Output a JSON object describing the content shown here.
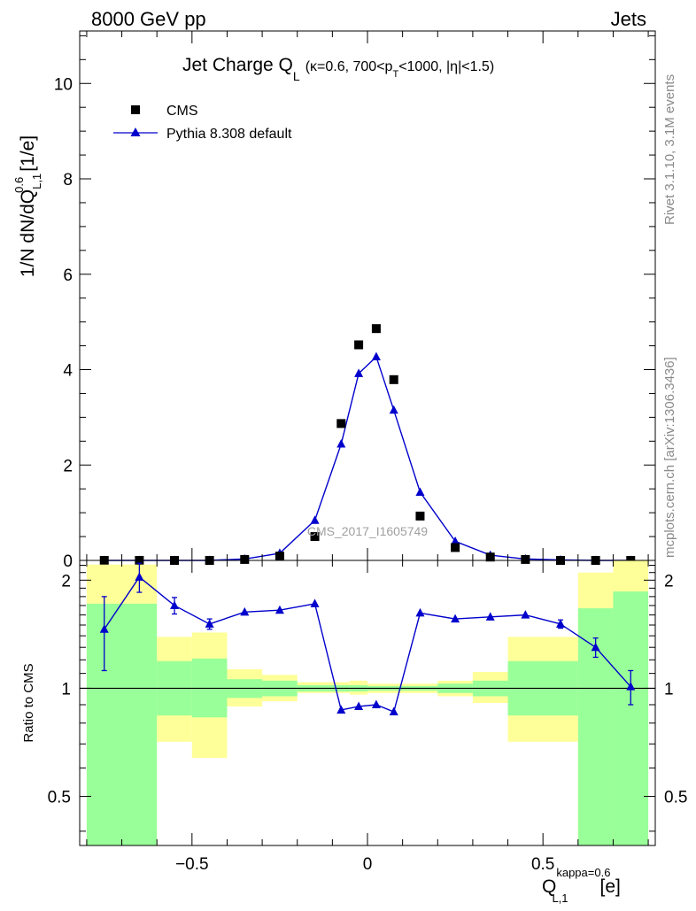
{
  "header": {
    "left": "8000 GeV pp",
    "right": "Jets"
  },
  "side_labels": {
    "rivet": "Rivet 3.1.10,  3.1M events",
    "mcplots": "mcplots.cern.ch [arXiv:1306.3436]"
  },
  "chart_data": [
    {
      "type": "scatter",
      "title": {
        "main": "Jet Charge Q",
        "main_sub": "L",
        "detail_pre": "(κ=0.6, 700<p",
        "detail_sub": "T",
        "detail_post": "<1000, |η|<1.5)"
      },
      "watermark": "CMS_2017_I1605749",
      "ylabel": "1/N dN/dQ",
      "ylabel_sup": "0.6",
      "ylabel_sub": "L,1",
      "ylabel_unit": "[1/e]",
      "xlim": [
        -0.82,
        0.82
      ],
      "ylim": [
        0,
        11.1
      ],
      "yticks": [
        0,
        2,
        4,
        6,
        8,
        10
      ],
      "legend": {
        "position": "top-left"
      },
      "series": [
        {
          "name": "CMS",
          "marker": "square",
          "color": "#000000",
          "x": [
            -0.75,
            -0.65,
            -0.55,
            -0.45,
            -0.35,
            -0.25,
            -0.15,
            -0.075,
            -0.025,
            0.025,
            0.075,
            0.15,
            0.25,
            0.35,
            0.45,
            0.55,
            0.65,
            0.75
          ],
          "y": [
            0.0,
            0.0,
            0.0,
            0.0,
            0.02,
            0.09,
            0.5,
            2.87,
            4.52,
            4.86,
            3.79,
            0.93,
            0.27,
            0.07,
            0.02,
            0.0,
            0.0,
            0.0
          ]
        },
        {
          "name": "Pythia 8.308 default",
          "marker": "triangle",
          "color": "#0000cc",
          "x": [
            -0.75,
            -0.65,
            -0.55,
            -0.45,
            -0.35,
            -0.25,
            -0.15,
            -0.075,
            -0.025,
            0.025,
            0.075,
            0.15,
            0.25,
            0.35,
            0.45,
            0.55,
            0.65,
            0.75
          ],
          "y": [
            0.0,
            0.0,
            0.0,
            0.0,
            0.03,
            0.15,
            0.84,
            2.44,
            3.92,
            4.27,
            3.15,
            1.43,
            0.4,
            0.11,
            0.03,
            0.01,
            0.0,
            0.0
          ]
        }
      ]
    },
    {
      "type": "line",
      "ylabel": "Ratio to CMS",
      "xlabel": "Q",
      "xlabel_sup": "kappa=0.6",
      "xlabel_sub": "L,1",
      "xlabel_unit": "[e]",
      "xlim": [
        -0.82,
        0.82
      ],
      "ylim": [
        0.365,
        2.27
      ],
      "yticks": [
        0.5,
        1,
        2
      ],
      "ytick_labels": [
        "0.5",
        "1",
        "2"
      ],
      "xticks": [
        -0.5,
        0,
        0.5
      ],
      "xtick_labels": [
        "−0.5",
        "0",
        "0.5"
      ],
      "bands": {
        "yellow_color": "#ffff99",
        "green_color": "#99ff99",
        "bins": [
          {
            "x0": -0.8,
            "x1": -0.6,
            "y_lo": 0.365,
            "y_hi": 2.21,
            "g_lo": 0.365,
            "g_hi": 1.72
          },
          {
            "x0": -0.6,
            "x1": -0.5,
            "y_lo": 0.71,
            "y_hi": 1.39,
            "g_lo": 0.84,
            "g_hi": 1.19
          },
          {
            "x0": -0.5,
            "x1": -0.4,
            "y_lo": 0.64,
            "y_hi": 1.43,
            "g_lo": 0.83,
            "g_hi": 1.21
          },
          {
            "x0": -0.4,
            "x1": -0.3,
            "y_lo": 0.89,
            "y_hi": 1.13,
            "g_lo": 0.94,
            "g_hi": 1.06
          },
          {
            "x0": -0.3,
            "x1": -0.2,
            "y_lo": 0.92,
            "y_hi": 1.09,
            "g_lo": 0.95,
            "g_hi": 1.05
          },
          {
            "x0": -0.2,
            "x1": -0.05,
            "y_lo": 0.97,
            "y_hi": 1.04,
            "g_lo": 0.98,
            "g_hi": 1.02
          },
          {
            "x0": -0.05,
            "x1": 0.0,
            "y_lo": 0.96,
            "y_hi": 1.05,
            "g_lo": 0.98,
            "g_hi": 1.02
          },
          {
            "x0": 0.0,
            "x1": 0.2,
            "y_lo": 0.97,
            "y_hi": 1.03,
            "g_lo": 0.985,
            "g_hi": 1.015
          },
          {
            "x0": 0.2,
            "x1": 0.3,
            "y_lo": 0.95,
            "y_hi": 1.05,
            "g_lo": 0.97,
            "g_hi": 1.03
          },
          {
            "x0": 0.3,
            "x1": 0.4,
            "y_lo": 0.91,
            "y_hi": 1.11,
            "g_lo": 0.95,
            "g_hi": 1.05
          },
          {
            "x0": 0.4,
            "x1": 0.6,
            "y_lo": 0.71,
            "y_hi": 1.39,
            "g_lo": 0.84,
            "g_hi": 1.19
          },
          {
            "x0": 0.6,
            "x1": 0.7,
            "y_lo": 0.365,
            "y_hi": 2.1,
            "g_lo": 0.365,
            "g_hi": 1.67
          },
          {
            "x0": 0.7,
            "x1": 0.8,
            "y_lo": 0.365,
            "y_hi": 2.27,
            "g_lo": 0.365,
            "g_hi": 1.86
          }
        ]
      },
      "series": [
        {
          "name": "Pythia 8.308 default",
          "color": "#0000cc",
          "x": [
            -0.75,
            -0.65,
            -0.55,
            -0.45,
            -0.35,
            -0.25,
            -0.15,
            -0.075,
            -0.025,
            0.025,
            0.075,
            0.15,
            0.25,
            0.35,
            0.45,
            0.55,
            0.65,
            0.75
          ],
          "y": [
            1.46,
            2.04,
            1.7,
            1.51,
            1.63,
            1.65,
            1.72,
            0.87,
            0.89,
            0.9,
            0.86,
            1.62,
            1.56,
            1.58,
            1.6,
            1.51,
            1.3,
            1.01
          ],
          "err": [
            0.34,
            0.19,
            0.09,
            0.05,
            0.0,
            0.0,
            0.0,
            0.0,
            0.0,
            0.0,
            0.0,
            0.0,
            0.0,
            0.0,
            0.0,
            0.04,
            0.08,
            0.11
          ]
        }
      ]
    }
  ]
}
